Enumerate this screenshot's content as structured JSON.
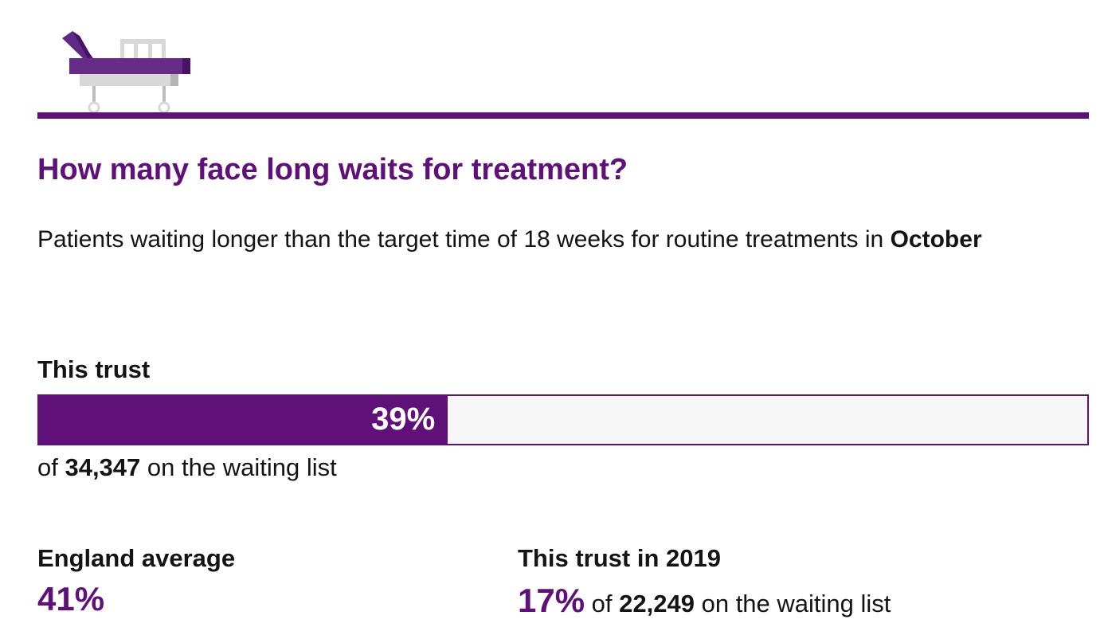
{
  "icon": "hospital-bed-icon",
  "colors": {
    "accent": "#5f1079",
    "bar_bg": "#f7f7f7",
    "text": "#141414"
  },
  "title": "How many face long waits for treatment?",
  "subtitle": {
    "text": "Patients waiting longer than the target time of 18 weeks for routine treatments in ",
    "month": "October"
  },
  "this_trust": {
    "label": "This trust",
    "percent": 39,
    "percent_label": "39%",
    "of_prefix": "of ",
    "total": "34,347",
    "of_suffix": " on the waiting list"
  },
  "england_average": {
    "label": "England average",
    "value": "41%"
  },
  "trust_2019": {
    "label": "This trust in 2019",
    "value": "17%",
    "of_prefix": " of ",
    "total": "22,249",
    "of_suffix": " on the waiting list"
  }
}
